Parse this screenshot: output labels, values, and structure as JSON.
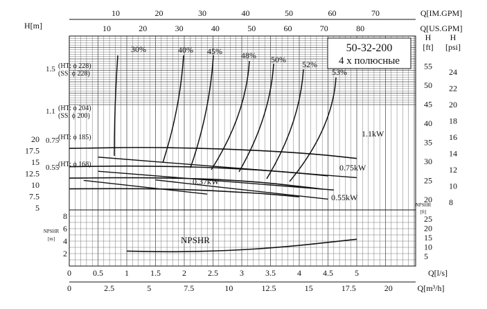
{
  "chart_data": {
    "type": "line",
    "model_title": "50-32-200",
    "model_subtitle": "4 х полюсные",
    "axes": {
      "q_ls": {
        "label": "Q[l/s]",
        "range": [
          0,
          6
        ],
        "ticks": [
          "0",
          "0.5",
          "1",
          "1.5",
          "2",
          "2.5",
          "3",
          "3.5",
          "4",
          "4.5",
          "5"
        ]
      },
      "q_m3h": {
        "label": "Q[m³/h]",
        "ticks": [
          "0",
          "2.5",
          "5",
          "7.5",
          "10",
          "12.5",
          "15",
          "17.5",
          "20"
        ]
      },
      "q_usgpm": {
        "label": "Q[US.GPM]",
        "ticks": [
          "10",
          "20",
          "30",
          "40",
          "50",
          "60",
          "70",
          "80"
        ]
      },
      "q_imgpm": {
        "label": "Q[IM.GPM]",
        "ticks": [
          "10",
          "20",
          "30",
          "40",
          "50",
          "60",
          "70"
        ]
      },
      "head_m": {
        "label": "H[m]",
        "range": [
          0,
          20
        ],
        "ticks": [
          "5",
          "7.5",
          "10",
          "12.5",
          "15",
          "17.5",
          "20"
        ]
      },
      "head_ft": {
        "label_top": "H",
        "label_unit": "[ft]",
        "ticks": [
          "20",
          "25",
          "30",
          "35",
          "40",
          "45",
          "50",
          "55"
        ]
      },
      "head_psi": {
        "label_top": "H",
        "label_unit": "[psi]",
        "ticks": [
          "8",
          "10",
          "12",
          "14",
          "16",
          "18",
          "20",
          "22",
          "24"
        ]
      },
      "npshr_m": {
        "label": "NPSHR\n[m]",
        "range": [
          0,
          10
        ],
        "ticks": [
          "2",
          "4",
          "6",
          "8"
        ]
      },
      "npshr_ft": {
        "label": "NPSHR\n[ft]",
        "ticks": [
          "5",
          "10",
          "15",
          "20",
          "25"
        ]
      }
    },
    "series": [
      {
        "name": "1.5 (HT: ϕ 228) (SS: ϕ 228)",
        "x": [
          0,
          0.5,
          1,
          1.5,
          2,
          2.5,
          3,
          3.5,
          4,
          4.5,
          5
        ],
        "y": [
          18.0,
          18.1,
          18.2,
          18.2,
          18.1,
          17.95,
          17.7,
          17.4,
          17.0,
          16.5,
          15.8
        ]
      },
      {
        "name": "1.1 (HT: ϕ 204) (SS: ϕ 200)",
        "x": [
          0,
          0.5,
          1,
          1.5,
          2,
          2.5,
          3,
          3.5,
          4,
          4.5
        ],
        "y": [
          14.0,
          14.1,
          14.15,
          14.1,
          14.0,
          13.8,
          13.5,
          13.1,
          12.6,
          12.0
        ]
      },
      {
        "name": "0.75 (HT: ϕ 185)",
        "x": [
          0,
          0.5,
          1,
          1.5,
          2,
          2.5,
          3,
          3.5,
          4,
          4.4
        ],
        "y": [
          11.5,
          11.55,
          11.6,
          11.55,
          11.45,
          11.25,
          10.9,
          10.4,
          9.7,
          9.1
        ]
      },
      {
        "name": "0.55 (HT: ϕ 168)",
        "x": [
          0,
          0.5,
          1,
          1.5,
          2,
          2.5,
          3,
          3.5,
          4
        ],
        "y": [
          9.15,
          9.2,
          9.2,
          9.15,
          9.0,
          8.75,
          8.4,
          8.0,
          7.4
        ]
      }
    ],
    "power_lines": [
      {
        "label": "1.1kW",
        "from": [
          0.5,
          16.1
        ],
        "to": [
          5.0,
          11.6
        ]
      },
      {
        "label": "0.75kW",
        "from": [
          0.5,
          13.0
        ],
        "to": [
          4.6,
          8.9
        ]
      },
      {
        "label": "0.55kW",
        "from": [
          1.5,
          11.1
        ],
        "to": [
          4.5,
          6.9
        ]
      },
      {
        "label": "0.37kW",
        "from": [
          0.25,
          11.0
        ],
        "to": [
          2.4,
          8.0
        ]
      }
    ],
    "efficiency_labels": [
      "30%",
      "40%",
      "45%",
      "48%",
      "50%",
      "52%",
      "53%"
    ],
    "npshr": {
      "label": "NPSHR",
      "x": [
        1,
        1.5,
        2,
        2.5,
        3,
        3.5,
        4,
        4.5,
        5
      ],
      "y": [
        2.4,
        2.3,
        2.3,
        2.4,
        2.6,
        2.9,
        3.3,
        3.8,
        4.3
      ]
    },
    "grid": true
  }
}
